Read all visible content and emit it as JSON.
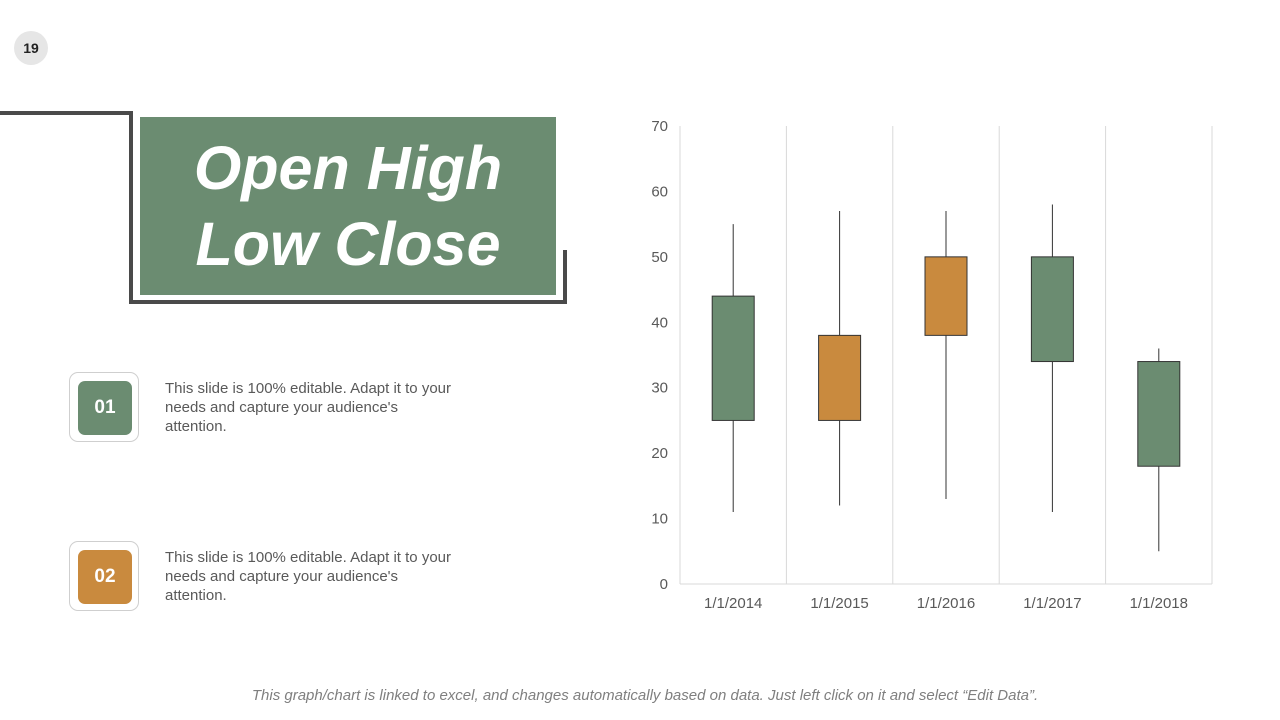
{
  "slide": {
    "page_number": "19",
    "title": "Open High Low Close",
    "footer_note": "This graph/chart is linked to excel, and changes automatically based on data. Just left click on it and select “Edit Data”."
  },
  "items": [
    {
      "number": "01",
      "text": "This slide is 100% editable. Adapt it to your needs and capture your audience's attention.",
      "color": "#6b8c71"
    },
    {
      "number": "02",
      "text": "This slide is 100% editable. Adapt it to your needs and capture your audience's attention.",
      "color": "#c98a3e"
    }
  ],
  "colors": {
    "green": "#6b8c71",
    "orange": "#c98a3e",
    "frame": "#4a4a4a"
  },
  "chart_data": {
    "type": "candlestick",
    "categories": [
      "1/1/2014",
      "1/1/2015",
      "1/1/2016",
      "1/1/2017",
      "1/1/2018"
    ],
    "open": [
      44,
      25,
      38,
      50,
      34
    ],
    "high": [
      55,
      57,
      57,
      58,
      36
    ],
    "low": [
      11,
      12,
      13,
      11,
      5
    ],
    "close": [
      25,
      38,
      50,
      34,
      18
    ],
    "ylim": [
      0,
      70
    ],
    "yticks": [
      0,
      10,
      20,
      30,
      40,
      50,
      60,
      70
    ],
    "grid": "vertical",
    "down_color": "#6b8c71",
    "up_color": "#c98a3e"
  }
}
